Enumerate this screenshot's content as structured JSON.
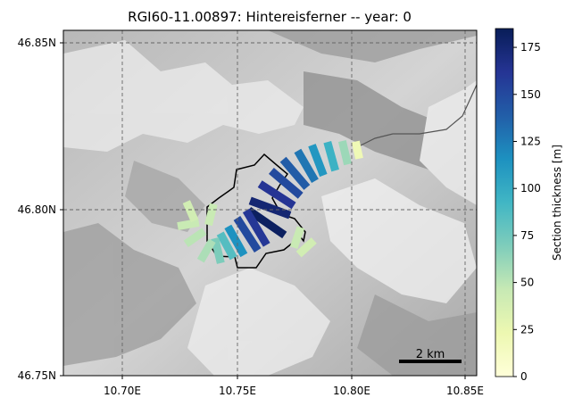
{
  "chart_data": {
    "type": "heatmap",
    "title": "RGI60-11.00897: Hintereisferner -- year: 0",
    "x_ticks": [
      {
        "value": 10.7,
        "label": "10.70E"
      },
      {
        "value": 10.75,
        "label": "10.75E"
      },
      {
        "value": 10.8,
        "label": "10.80E"
      },
      {
        "value": 10.85,
        "label": "10.85E"
      }
    ],
    "y_ticks": [
      {
        "value": 46.75,
        "label": "46.75N"
      },
      {
        "value": 46.8,
        "label": "46.80N"
      },
      {
        "value": 46.85,
        "label": "46.85N"
      }
    ],
    "xlim": [
      10.672,
      10.854
    ],
    "ylim": [
      46.75,
      46.855
    ],
    "grid": true,
    "colorbar": {
      "label": "Section thickness [m]",
      "range": [
        0,
        185
      ],
      "ticks": [
        0,
        25,
        50,
        75,
        100,
        125,
        150,
        175
      ],
      "colormap": "YlGnBu",
      "stops": [
        "#ffffd9",
        "#edf8b1",
        "#c7e9b4",
        "#7fcdbb",
        "#41b6c4",
        "#1d91c0",
        "#225ea8",
        "#253494",
        "#081d58"
      ]
    },
    "scale_bar": {
      "label": "2 km"
    },
    "glacier_sections": [
      {
        "lon": 10.8015,
        "lat": 46.8186,
        "thickness": 20
      },
      {
        "lon": 10.796,
        "lat": 46.8178,
        "thickness": 60
      },
      {
        "lon": 10.79,
        "lat": 46.8167,
        "thickness": 95
      },
      {
        "lon": 10.784,
        "lat": 46.8155,
        "thickness": 112
      },
      {
        "lon": 10.779,
        "lat": 46.8138,
        "thickness": 128
      },
      {
        "lon": 10.774,
        "lat": 46.8115,
        "thickness": 140
      },
      {
        "lon": 10.77,
        "lat": 46.8085,
        "thickness": 150
      },
      {
        "lon": 10.766,
        "lat": 46.805,
        "thickness": 162
      },
      {
        "lon": 10.763,
        "lat": 46.801,
        "thickness": 175
      },
      {
        "lon": 10.7615,
        "lat": 46.7965,
        "thickness": 182
      },
      {
        "lon": 10.757,
        "lat": 46.795,
        "thickness": 160
      },
      {
        "lon": 10.753,
        "lat": 46.793,
        "thickness": 150
      },
      {
        "lon": 10.748,
        "lat": 46.791,
        "thickness": 115
      },
      {
        "lon": 10.744,
        "lat": 46.7895,
        "thickness": 85
      },
      {
        "lon": 10.74,
        "lat": 46.788,
        "thickness": 70
      },
      {
        "lon": 10.735,
        "lat": 46.788,
        "thickness": 55
      },
      {
        "lon": 10.73,
        "lat": 46.792,
        "thickness": 50
      },
      {
        "lon": 10.727,
        "lat": 46.796,
        "thickness": 45
      },
      {
        "lon": 10.728,
        "lat": 46.8,
        "thickness": 40
      },
      {
        "lon": 10.737,
        "lat": 46.799,
        "thickness": 45
      },
      {
        "lon": 10.775,
        "lat": 46.792,
        "thickness": 45
      },
      {
        "lon": 10.779,
        "lat": 46.789,
        "thickness": 40
      }
    ]
  }
}
